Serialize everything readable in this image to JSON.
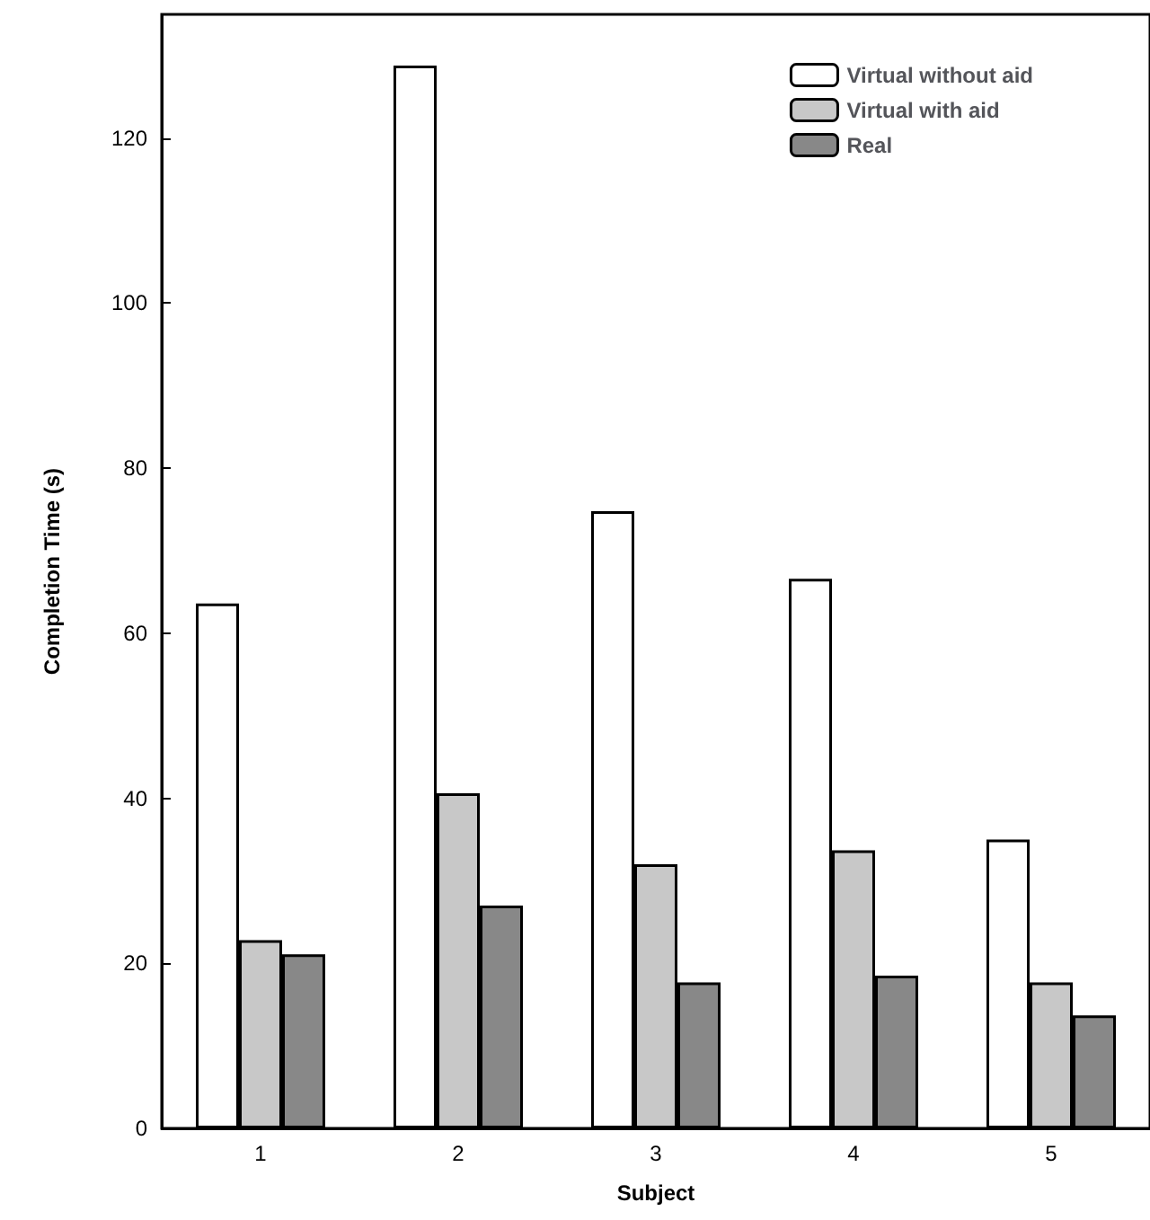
{
  "chart_data": {
    "type": "bar",
    "xlabel": "Subject",
    "ylabel": "Completion Time (s)",
    "categories": [
      "1",
      "2",
      "3",
      "4",
      "5"
    ],
    "series": [
      {
        "name": "Virtual without aid",
        "color": "#ffffff",
        "values": [
          63.6,
          128.8,
          74.8,
          66.6,
          35.0
        ]
      },
      {
        "name": "Virtual with aid",
        "color": "#c8c8c8",
        "values": [
          22.8,
          40.6,
          32.0,
          33.7,
          17.7
        ]
      },
      {
        "name": "Real",
        "color": "#888888",
        "values": [
          21.1,
          27.0,
          17.7,
          18.5,
          13.7
        ]
      }
    ],
    "ylim": [
      0,
      135
    ],
    "yticks": [
      0,
      20,
      40,
      60,
      80,
      100,
      120
    ],
    "grid": false,
    "legend": "top right"
  }
}
